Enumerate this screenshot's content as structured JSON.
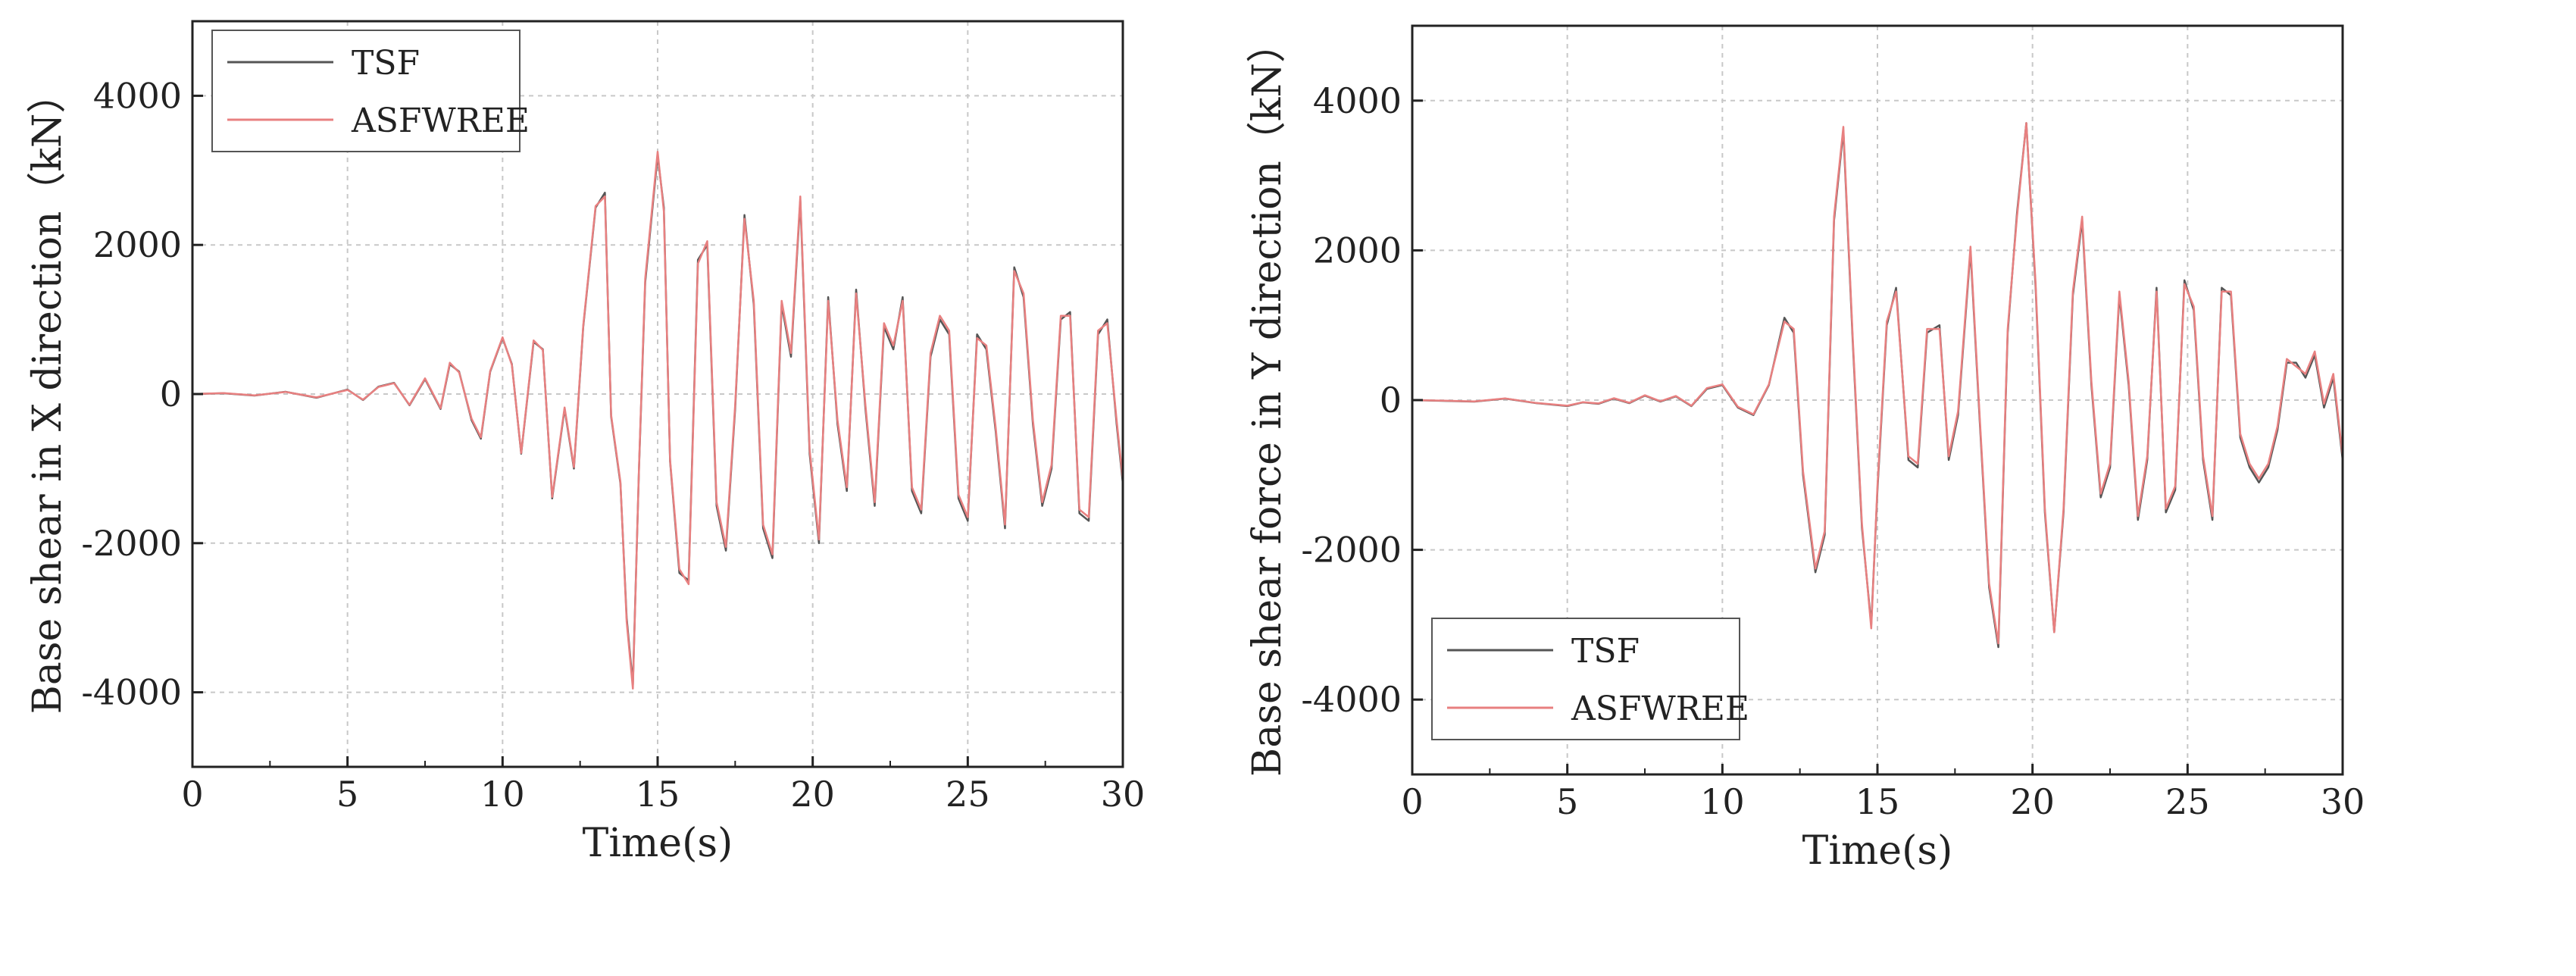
{
  "chart_data": [
    {
      "type": "line",
      "id": "x",
      "title": "",
      "xlabel": "Time(s)",
      "ylabel": "Base shear in X direction（kN）",
      "xlim": [
        0,
        30
      ],
      "ylim": [
        -5000,
        5000
      ],
      "xticks": [
        0,
        5,
        10,
        15,
        20,
        25,
        30
      ],
      "yticks": [
        -4000,
        -2000,
        0,
        2000,
        4000
      ],
      "grid": true,
      "legend_position": "top-left",
      "series": [
        {
          "name": "TSF",
          "color": "#555555",
          "x": [
            0,
            1,
            2,
            3,
            4,
            5,
            5.5,
            6,
            6.5,
            7,
            7.5,
            8,
            8.3,
            8.6,
            9,
            9.3,
            9.6,
            10,
            10.3,
            10.6,
            11,
            11.3,
            11.6,
            12,
            12.3,
            12.6,
            13,
            13.3,
            13.5,
            13.8,
            14,
            14.2,
            14.4,
            14.6,
            15,
            15.2,
            15.4,
            15.7,
            16,
            16.3,
            16.6,
            16.9,
            17.2,
            17.5,
            17.8,
            18.1,
            18.4,
            18.7,
            19,
            19.3,
            19.6,
            19.9,
            20.2,
            20.5,
            20.8,
            21.1,
            21.4,
            21.7,
            22,
            22.3,
            22.6,
            22.9,
            23.2,
            23.5,
            23.8,
            24.1,
            24.4,
            24.7,
            25,
            25.3,
            25.6,
            25.9,
            26.2,
            26.5,
            26.8,
            27.1,
            27.4,
            27.7,
            28,
            28.3,
            28.6,
            28.9,
            29.2,
            29.5,
            29.8,
            30
          ],
          "values": [
            0,
            10,
            -20,
            30,
            -50,
            60,
            -80,
            100,
            150,
            -150,
            200,
            -200,
            400,
            300,
            -350,
            -600,
            300,
            750,
            400,
            -800,
            700,
            600,
            -1400,
            -200,
            -1000,
            900,
            2500,
            2700,
            -300,
            -1200,
            -3000,
            -3900,
            -1000,
            1500,
            3200,
            2500,
            -900,
            -2400,
            -2500,
            1800,
            2000,
            -1500,
            -2100,
            -200,
            2400,
            1200,
            -1800,
            -2200,
            1200,
            500,
            2600,
            -800,
            -2000,
            1300,
            -400,
            -1300,
            1400,
            -200,
            -1500,
            900,
            600,
            1300,
            -1300,
            -1600,
            500,
            1000,
            800,
            -1400,
            -1700,
            800,
            600,
            -500,
            -1800,
            1700,
            1300,
            -400,
            -1500,
            -1000,
            1000,
            1100,
            -1600,
            -1700,
            800,
            1000,
            -400,
            -1200
          ]
        },
        {
          "name": "ASFWREE",
          "color": "#e88080",
          "x": [
            0,
            1,
            2,
            3,
            4,
            5,
            5.5,
            6,
            6.5,
            7,
            7.5,
            8,
            8.3,
            8.6,
            9,
            9.3,
            9.6,
            10,
            10.3,
            10.6,
            11,
            11.3,
            11.6,
            12,
            12.3,
            12.6,
            13,
            13.3,
            13.5,
            13.8,
            14,
            14.2,
            14.4,
            14.6,
            15,
            15.2,
            15.4,
            15.7,
            16,
            16.3,
            16.6,
            16.9,
            17.2,
            17.5,
            17.8,
            18.1,
            18.4,
            18.7,
            19,
            19.3,
            19.6,
            19.9,
            20.2,
            20.5,
            20.8,
            21.1,
            21.4,
            21.7,
            22,
            22.3,
            22.6,
            22.9,
            23.2,
            23.5,
            23.8,
            24.1,
            24.4,
            24.7,
            25,
            25.3,
            25.6,
            25.9,
            26.2,
            26.5,
            26.8,
            27.1,
            27.4,
            27.7,
            28,
            28.3,
            28.6,
            28.9,
            29.2,
            29.5,
            29.8,
            30
          ],
          "values": [
            0,
            12,
            -18,
            28,
            -45,
            55,
            -75,
            95,
            145,
            -145,
            210,
            -190,
            420,
            290,
            -330,
            -580,
            310,
            760,
            390,
            -790,
            720,
            590,
            -1380,
            -180,
            -980,
            920,
            2520,
            2650,
            -280,
            -1180,
            -3050,
            -3950,
            -980,
            1550,
            3250,
            2450,
            -880,
            -2350,
            -2550,
            1750,
            2050,
            -1450,
            -2050,
            -150,
            2350,
            1250,
            -1750,
            -2150,
            1250,
            550,
            2650,
            -750,
            -1950,
            1250,
            -350,
            -1250,
            1350,
            -150,
            -1450,
            950,
            650,
            1250,
            -1250,
            -1550,
            550,
            1050,
            850,
            -1350,
            -1650,
            750,
            650,
            -450,
            -1750,
            1650,
            1350,
            -350,
            -1450,
            -950,
            1050,
            1050,
            -1550,
            -1650,
            850,
            950,
            -350,
            -1150
          ]
        }
      ]
    },
    {
      "type": "line",
      "id": "y",
      "title": "",
      "xlabel": "Time(s)",
      "ylabel": "Base shear force in Y direction（kN）",
      "xlim": [
        0,
        30
      ],
      "ylim": [
        -5000,
        5000
      ],
      "xticks": [
        0,
        5,
        10,
        15,
        20,
        25,
        30
      ],
      "yticks": [
        -4000,
        -2000,
        0,
        2000,
        4000
      ],
      "grid": true,
      "legend_position": "bottom-left",
      "series": [
        {
          "name": "TSF",
          "color": "#555555",
          "x": [
            0,
            1,
            2,
            3,
            4,
            5,
            5.5,
            6,
            6.5,
            7,
            7.5,
            8,
            8.5,
            9,
            9.5,
            10,
            10.5,
            11,
            11.5,
            12,
            12.3,
            12.6,
            13,
            13.3,
            13.6,
            13.9,
            14.2,
            14.5,
            14.8,
            15,
            15.3,
            15.6,
            16,
            16.3,
            16.6,
            17,
            17.3,
            17.6,
            18,
            18.3,
            18.6,
            18.9,
            19.2,
            19.5,
            19.8,
            20.1,
            20.4,
            20.7,
            21,
            21.3,
            21.6,
            21.9,
            22.2,
            22.5,
            22.8,
            23.1,
            23.4,
            23.7,
            24,
            24.3,
            24.6,
            24.9,
            25.2,
            25.5,
            25.8,
            26.1,
            26.4,
            26.7,
            27,
            27.3,
            27.6,
            27.9,
            28.2,
            28.5,
            28.8,
            29.1,
            29.4,
            29.7,
            30
          ],
          "values": [
            0,
            -10,
            -20,
            20,
            -40,
            -80,
            -30,
            -50,
            20,
            -40,
            60,
            -20,
            50,
            -80,
            150,
            200,
            -100,
            -200,
            200,
            1100,
            900,
            -1000,
            -2300,
            -1800,
            2400,
            3600,
            800,
            -1700,
            -3000,
            -1200,
            1000,
            1500,
            -800,
            -900,
            900,
            1000,
            -800,
            -200,
            2000,
            -300,
            -2500,
            -3300,
            900,
            2500,
            3700,
            1500,
            -1500,
            -3100,
            -1500,
            1400,
            2400,
            200,
            -1300,
            -900,
            1400,
            200,
            -1600,
            -800,
            1500,
            -1500,
            -1200,
            1600,
            1200,
            -800,
            -1600,
            1500,
            1400,
            -500,
            -900,
            -1100,
            -900,
            -400,
            500,
            500,
            300,
            600,
            -100,
            300,
            -800
          ]
        },
        {
          "name": "ASFWREE",
          "color": "#e88080",
          "x": [
            0,
            1,
            2,
            3,
            4,
            5,
            5.5,
            6,
            6.5,
            7,
            7.5,
            8,
            8.5,
            9,
            9.5,
            10,
            10.5,
            11,
            11.5,
            12,
            12.3,
            12.6,
            13,
            13.3,
            13.6,
            13.9,
            14.2,
            14.5,
            14.8,
            15,
            15.3,
            15.6,
            16,
            16.3,
            16.6,
            17,
            17.3,
            17.6,
            18,
            18.3,
            18.6,
            18.9,
            19.2,
            19.5,
            19.8,
            20.1,
            20.4,
            20.7,
            21,
            21.3,
            21.6,
            21.9,
            22.2,
            22.5,
            22.8,
            23.1,
            23.4,
            23.7,
            24,
            24.3,
            24.6,
            24.9,
            25.2,
            25.5,
            25.8,
            26.1,
            26.4,
            26.7,
            27,
            27.3,
            27.6,
            27.9,
            28.2,
            28.5,
            28.8,
            29.1,
            29.4,
            29.7,
            30
          ],
          "values": [
            0,
            -8,
            -18,
            22,
            -38,
            -75,
            -28,
            -45,
            25,
            -35,
            65,
            -15,
            55,
            -75,
            160,
            210,
            -90,
            -190,
            210,
            1050,
            950,
            -950,
            -2250,
            -1750,
            2450,
            3650,
            850,
            -1650,
            -3050,
            -1150,
            1050,
            1450,
            -750,
            -850,
            950,
            950,
            -750,
            -150,
            2050,
            -250,
            -2450,
            -3250,
            950,
            2450,
            3700,
            1550,
            -1450,
            -3100,
            -1450,
            1450,
            2450,
            250,
            -1250,
            -850,
            1450,
            250,
            -1550,
            -750,
            1450,
            -1450,
            -1150,
            1550,
            1250,
            -750,
            -1550,
            1450,
            1450,
            -450,
            -850,
            -1050,
            -850,
            -350,
            550,
            450,
            350,
            650,
            -50,
            350,
            -750
          ]
        }
      ]
    }
  ]
}
